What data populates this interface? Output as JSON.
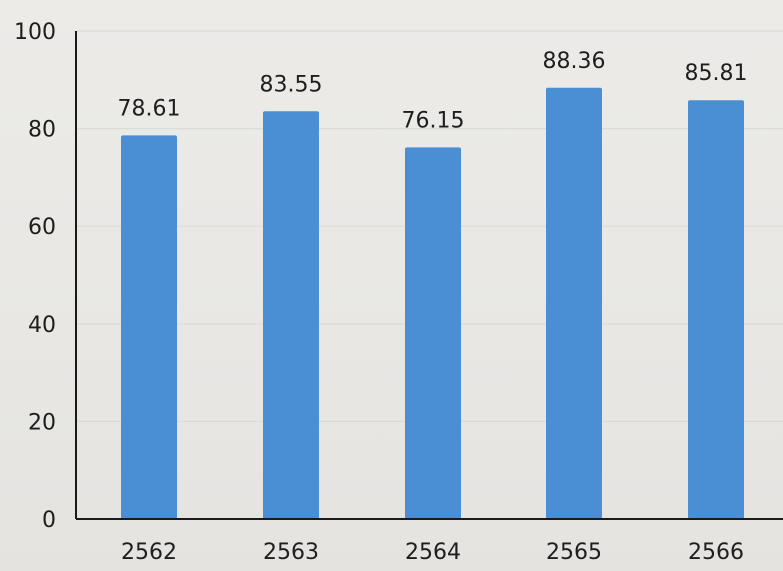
{
  "chart_data": {
    "type": "bar",
    "categories": [
      "2562",
      "2563",
      "2564",
      "2565",
      "2566"
    ],
    "values": [
      78.61,
      83.55,
      76.15,
      88.36,
      85.81
    ],
    "data_labels": [
      "78.61",
      "83.55",
      "76.15",
      "88.36",
      "85.81"
    ],
    "title": "",
    "xlabel": "",
    "ylabel": "",
    "ylim": [
      0,
      100
    ],
    "yticks": [
      0,
      20,
      40,
      60,
      80,
      100
    ],
    "ytick_labels": [
      "0",
      "20",
      "40",
      "60",
      "80",
      "100"
    ],
    "grid": true,
    "legend": "none",
    "bar_color": "#4a8fd4"
  }
}
